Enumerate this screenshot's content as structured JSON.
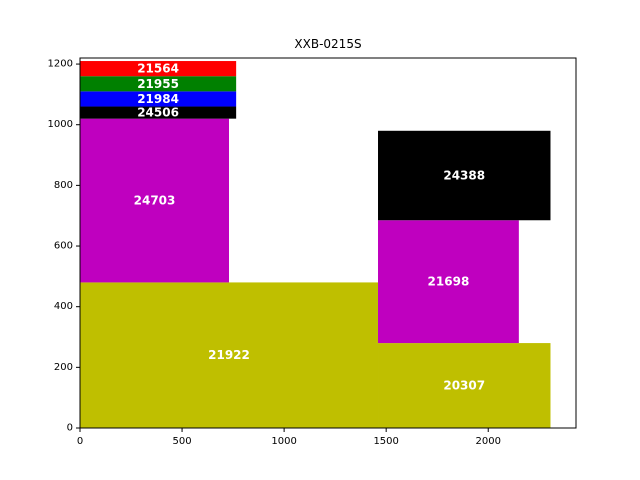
{
  "chart_data": {
    "type": "bar",
    "title": "XXB-0215S",
    "xlabel": "",
    "ylabel": "",
    "xlim": [
      0,
      2430
    ],
    "ylim": [
      0,
      1220
    ],
    "xticks": [
      0,
      500,
      1000,
      1500,
      2000
    ],
    "yticks": [
      0,
      200,
      400,
      600,
      800,
      1000,
      1200
    ],
    "grid": false,
    "rectangles": [
      {
        "label": "21922",
        "x": 0,
        "y": 0,
        "width": 1460,
        "height": 480,
        "color": "#bfbf00"
      },
      {
        "label": "24703",
        "x": 0,
        "y": 480,
        "width": 730,
        "height": 540,
        "color": "#bf00bf"
      },
      {
        "label": "24506",
        "x": 0,
        "y": 1020,
        "width": 765,
        "height": 40,
        "color": "#000000"
      },
      {
        "label": "21984",
        "x": 0,
        "y": 1060,
        "width": 765,
        "height": 50,
        "color": "#0000ff"
      },
      {
        "label": "21955",
        "x": 0,
        "y": 1110,
        "width": 765,
        "height": 50,
        "color": "#008000"
      },
      {
        "label": "21564",
        "x": 0,
        "y": 1160,
        "width": 765,
        "height": 50,
        "color": "#ff0000"
      },
      {
        "label": "20307",
        "x": 1460,
        "y": 0,
        "width": 845,
        "height": 280,
        "color": "#bfbf00"
      },
      {
        "label": "21698",
        "x": 1460,
        "y": 280,
        "width": 690,
        "height": 405,
        "color": "#bf00bf"
      },
      {
        "label": "24388",
        "x": 1460,
        "y": 685,
        "width": 845,
        "height": 295,
        "color": "#000000"
      }
    ]
  }
}
